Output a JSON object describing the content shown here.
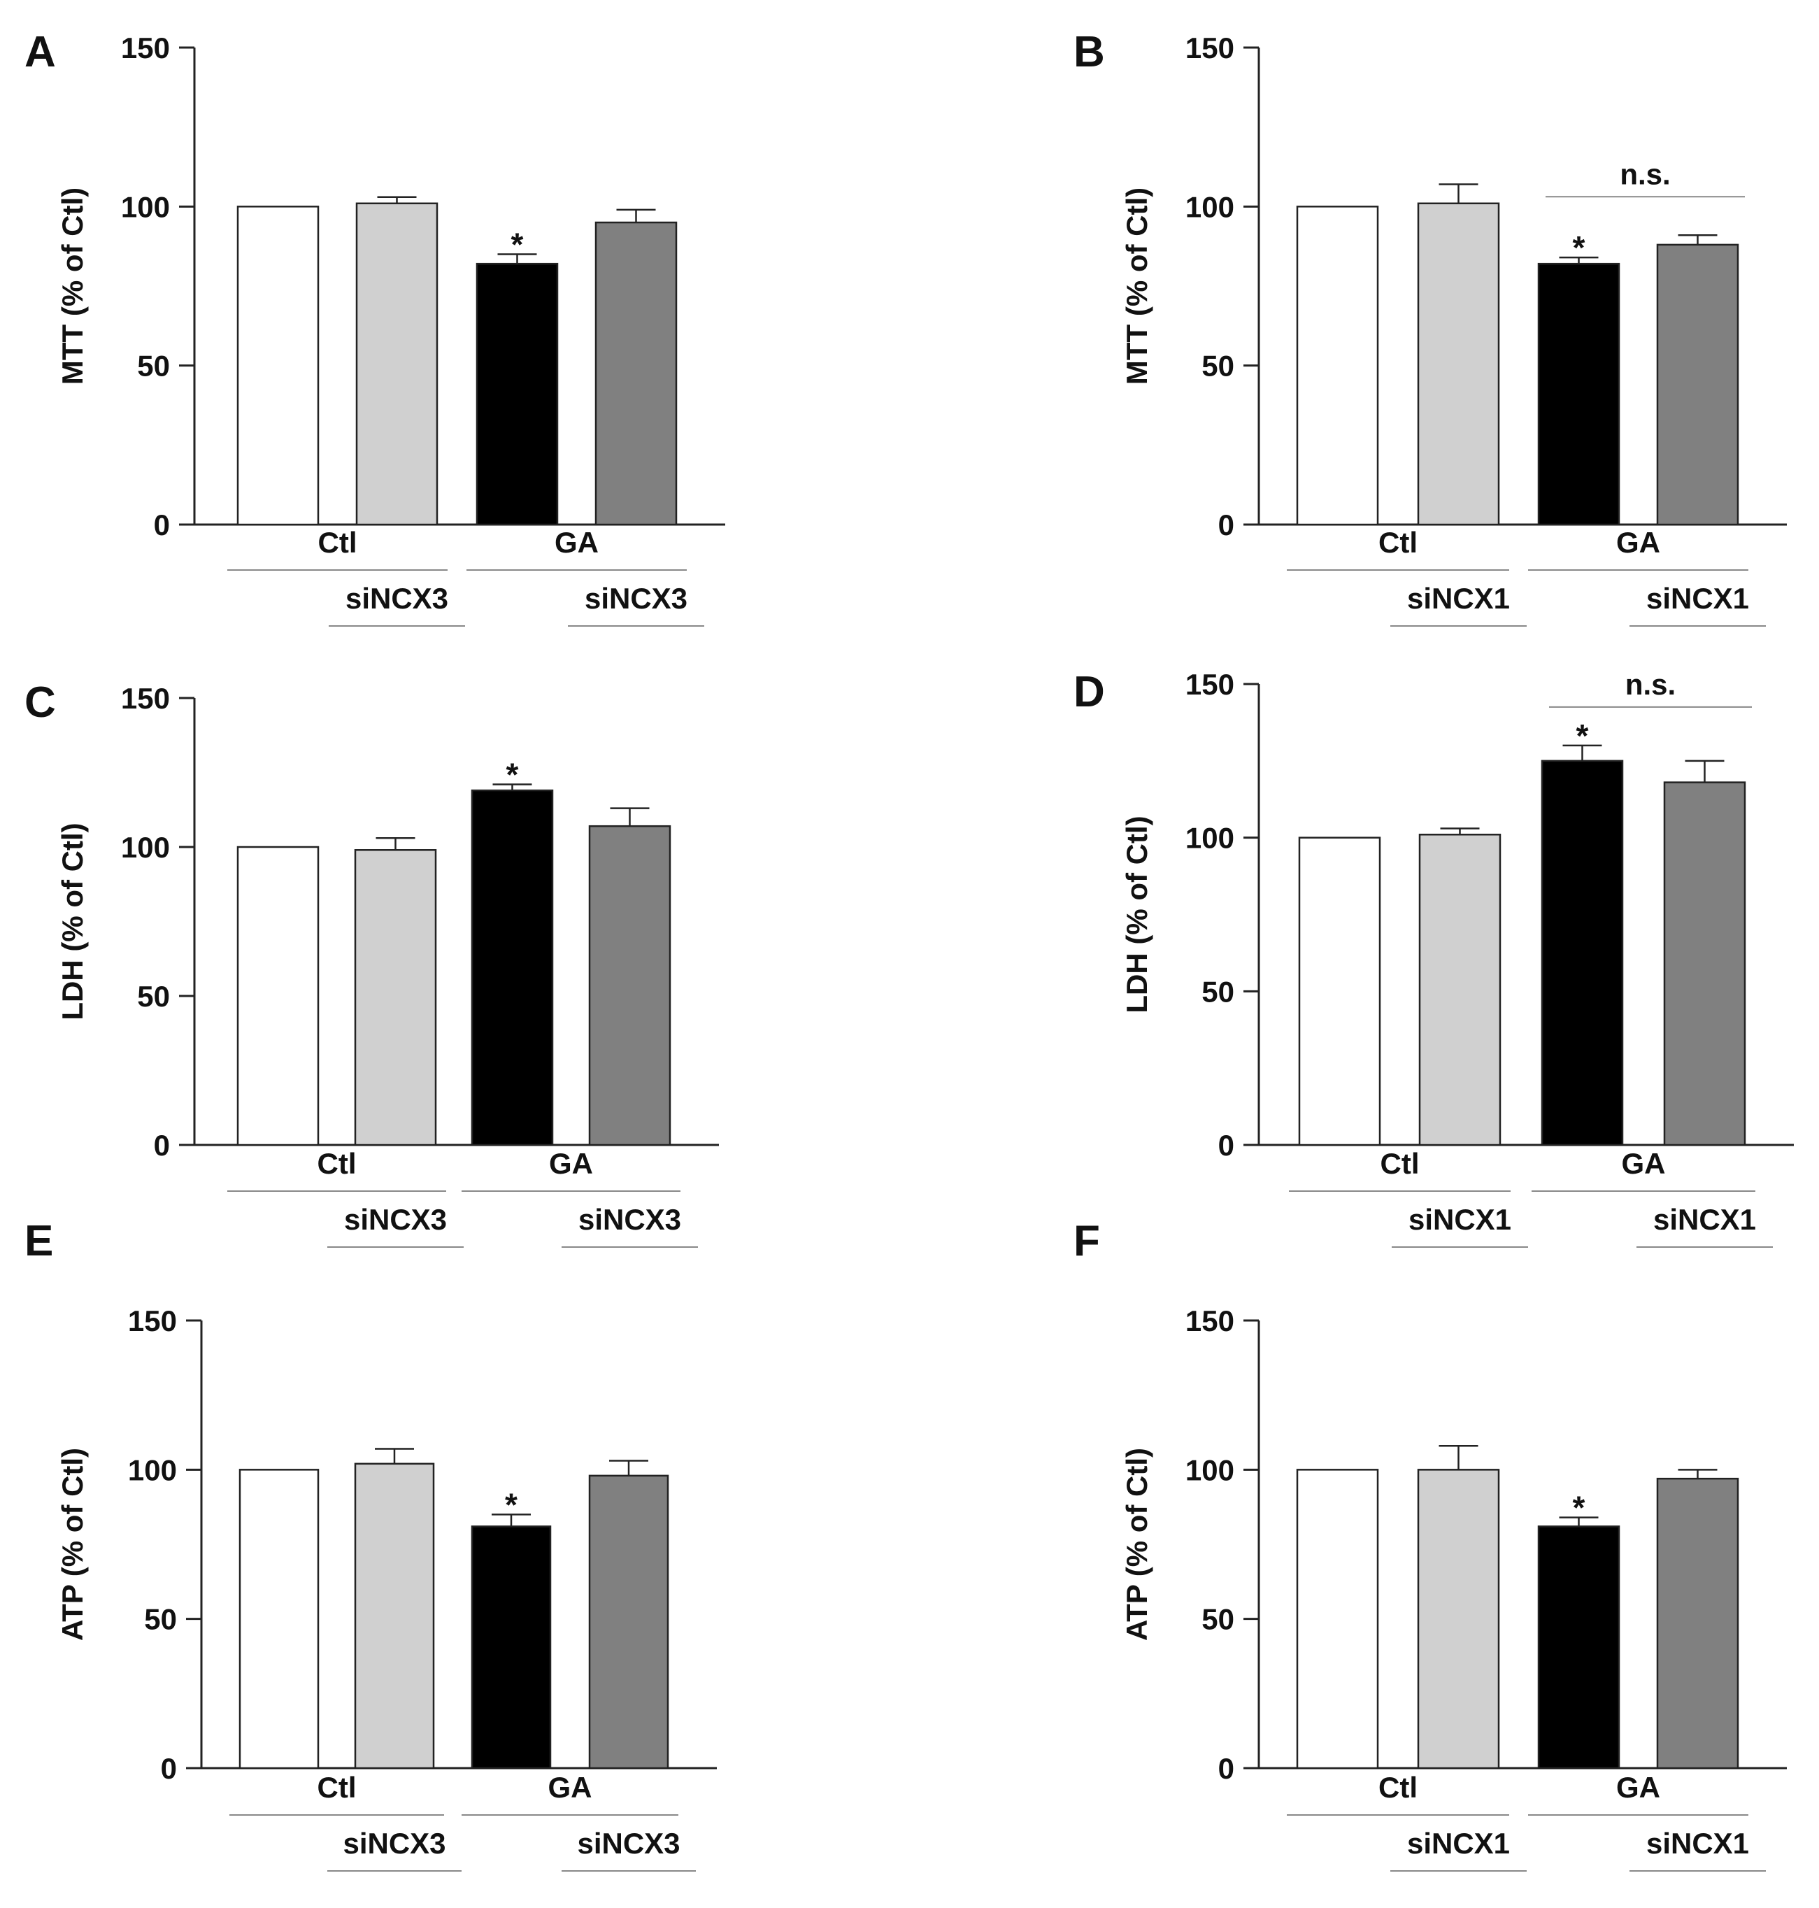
{
  "colors": {
    "bar_fills": [
      "#ffffff",
      "#d0d0d0",
      "#000000",
      "#808080"
    ],
    "stroke": "#222222",
    "rule": "#888888"
  },
  "chart_data": [
    {
      "panel": "A",
      "type": "bar",
      "ylabel": "MTT (% of Ctl)",
      "ylim": [
        0,
        150
      ],
      "yticks": [
        0,
        50,
        100,
        150
      ],
      "categories": [
        "Ctl",
        "Ctl + siNCX3",
        "GA",
        "GA + siNCX3"
      ],
      "values": [
        100,
        101,
        82,
        95
      ],
      "errors": [
        0,
        2,
        3,
        4
      ],
      "star": [
        false,
        false,
        true,
        false
      ],
      "group_labels": [
        "Ctl",
        "GA"
      ],
      "si_label": "siNCX3",
      "ns": null
    },
    {
      "panel": "B",
      "type": "bar",
      "ylabel": "MTT (% of Ctl)",
      "ylim": [
        0,
        150
      ],
      "yticks": [
        0,
        50,
        100,
        150
      ],
      "categories": [
        "Ctl",
        "Ctl + siNCX1",
        "GA",
        "GA + siNCX1"
      ],
      "values": [
        100,
        101,
        82,
        88
      ],
      "errors": [
        0,
        6,
        2,
        3
      ],
      "star": [
        false,
        false,
        true,
        false
      ],
      "group_labels": [
        "Ctl",
        "GA"
      ],
      "si_label": "siNCX1",
      "ns": "n.s."
    },
    {
      "panel": "C",
      "type": "bar",
      "ylabel": "LDH (% of Ctl)",
      "ylim": [
        0,
        150
      ],
      "yticks": [
        0,
        50,
        100,
        150
      ],
      "categories": [
        "Ctl",
        "Ctl + siNCX3",
        "GA",
        "GA + siNCX3"
      ],
      "values": [
        100,
        99,
        119,
        107
      ],
      "errors": [
        0,
        4,
        2,
        6
      ],
      "star": [
        false,
        false,
        true,
        false
      ],
      "group_labels": [
        "Ctl",
        "GA"
      ],
      "si_label": "siNCX3",
      "ns": null
    },
    {
      "panel": "D",
      "type": "bar",
      "ylabel": "LDH (% of Ctl)",
      "ylim": [
        0,
        150
      ],
      "yticks": [
        0,
        50,
        100,
        150
      ],
      "categories": [
        "Ctl",
        "Ctl + siNCX1",
        "GA",
        "GA + siNCX1"
      ],
      "values": [
        100,
        101,
        125,
        118
      ],
      "errors": [
        0,
        2,
        5,
        7
      ],
      "star": [
        false,
        false,
        true,
        false
      ],
      "group_labels": [
        "Ctl",
        "GA"
      ],
      "si_label": "siNCX1",
      "ns": "n.s."
    },
    {
      "panel": "E",
      "type": "bar",
      "ylabel": "ATP (% of Ctl)",
      "ylim": [
        0,
        150
      ],
      "yticks": [
        0,
        50,
        100,
        150
      ],
      "categories": [
        "Ctl",
        "Ctl + siNCX3",
        "GA",
        "GA + siNCX3"
      ],
      "values": [
        100,
        102,
        81,
        98
      ],
      "errors": [
        0,
        5,
        4,
        5
      ],
      "star": [
        false,
        false,
        true,
        false
      ],
      "group_labels": [
        "Ctl",
        "GA"
      ],
      "si_label": "siNCX3",
      "ns": null
    },
    {
      "panel": "F",
      "type": "bar",
      "ylabel": "ATP (% of Ctl)",
      "ylim": [
        0,
        150
      ],
      "yticks": [
        0,
        50,
        100,
        150
      ],
      "categories": [
        "Ctl",
        "Ctl + siNCX1",
        "GA",
        "GA + siNCX1"
      ],
      "values": [
        100,
        100,
        81,
        97
      ],
      "errors": [
        0,
        8,
        3,
        3
      ],
      "star": [
        false,
        false,
        true,
        false
      ],
      "group_labels": [
        "Ctl",
        "GA"
      ],
      "si_label": "siNCX1",
      "ns": null
    }
  ]
}
